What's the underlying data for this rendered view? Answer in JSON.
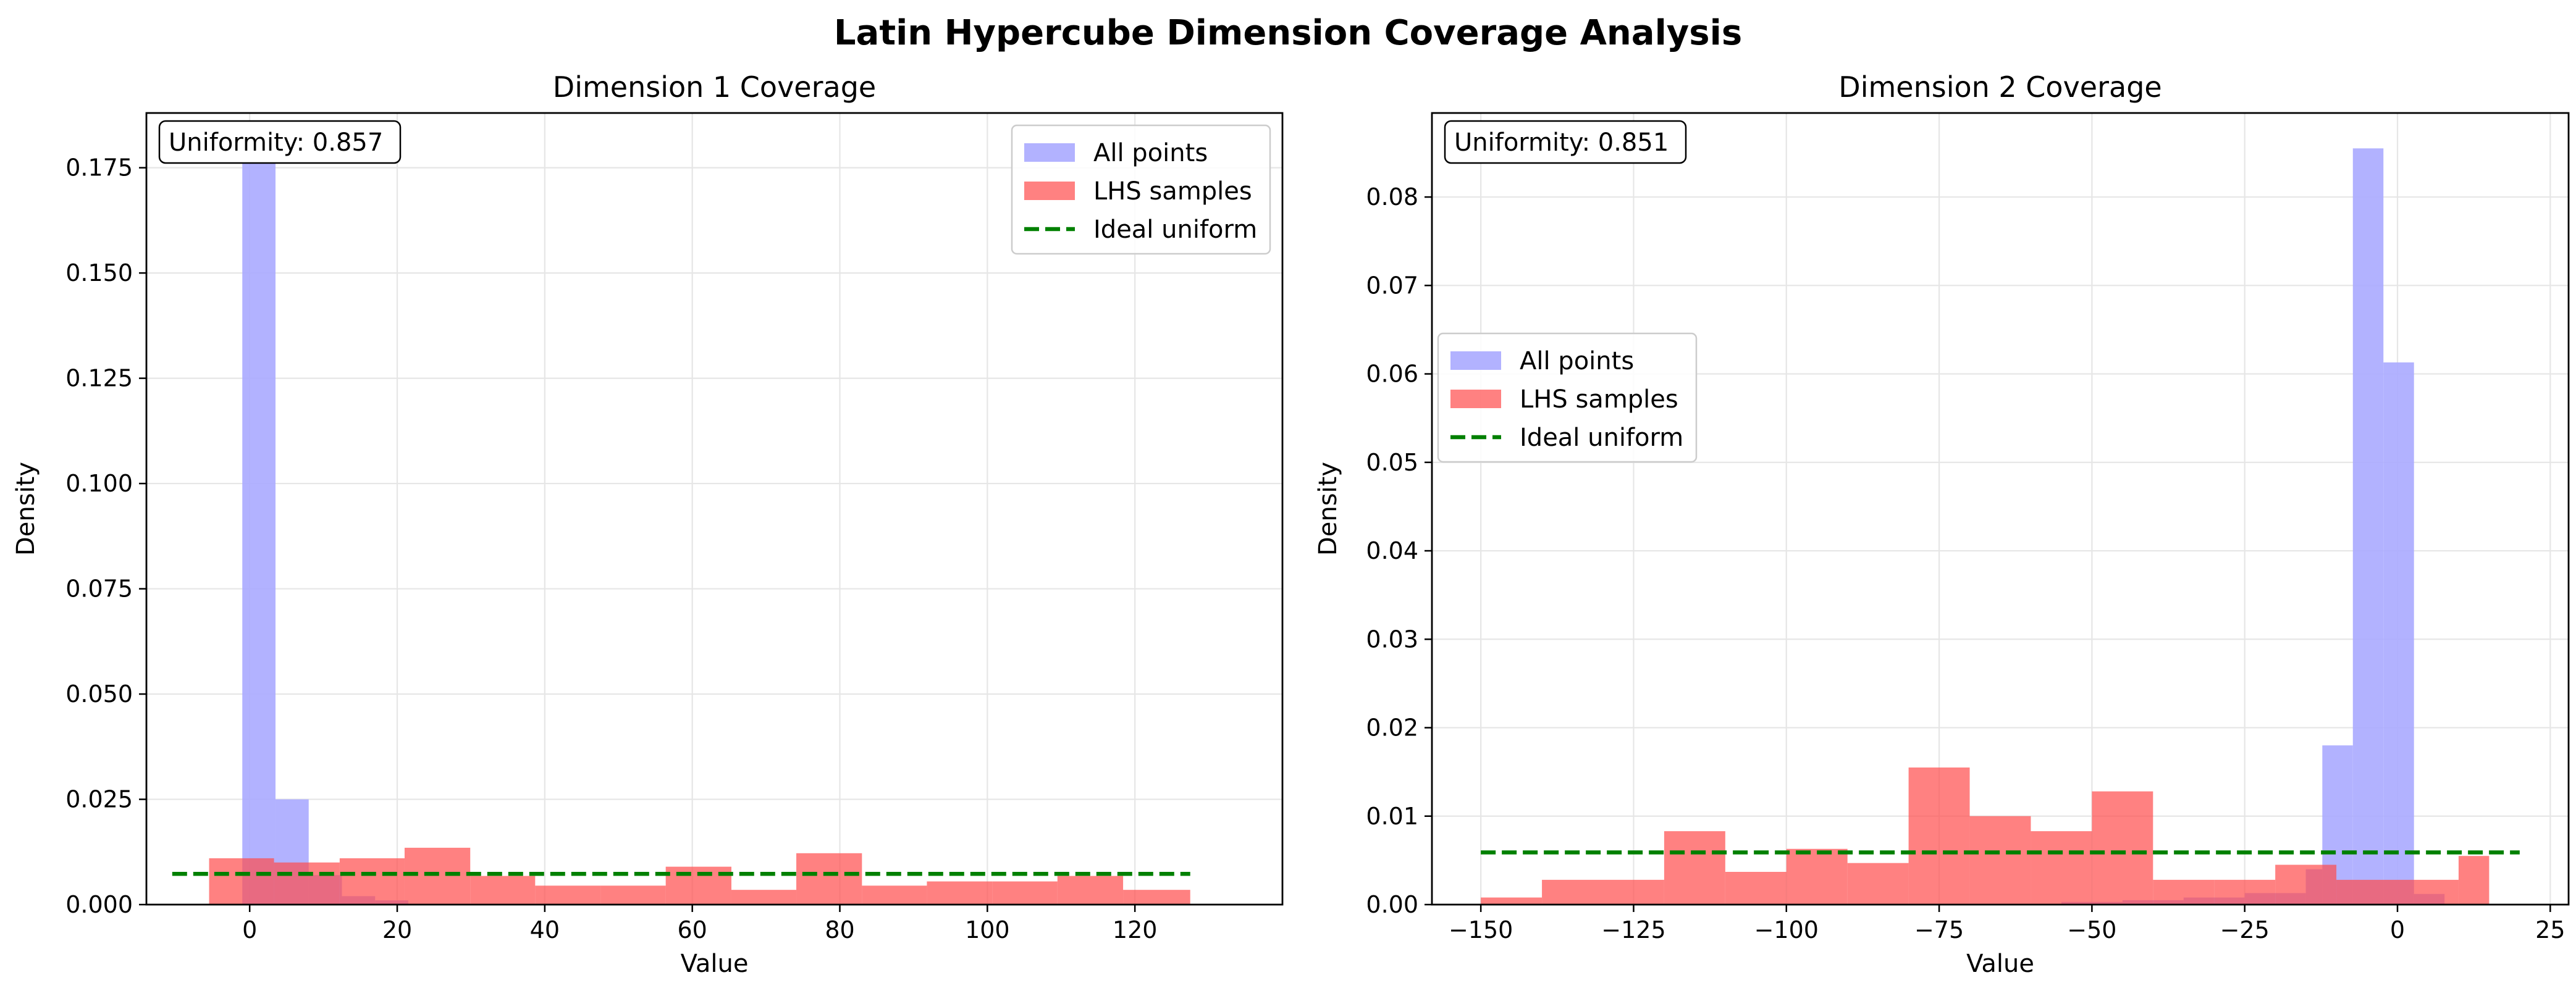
{
  "title": "Latin Hypercube Dimension Coverage Analysis",
  "colors": {
    "all_points": "#aaaaff",
    "lhs_samples": "#ff4c4c",
    "ideal_uniform": "#008000",
    "grid": "#e6e6e6"
  },
  "legend": {
    "all_points": "All points",
    "lhs_samples": "LHS samples",
    "ideal_uniform": "Ideal uniform"
  },
  "chart_data": [
    {
      "type": "histogram",
      "title": "Dimension 1 Coverage",
      "xlabel": "Value",
      "ylabel": "Density",
      "xlim": [
        -14,
        140
      ],
      "ylim": [
        0,
        0.188
      ],
      "xticks": [
        0,
        20,
        40,
        60,
        80,
        100,
        120
      ],
      "yticks": [
        0.0,
        0.025,
        0.05,
        0.075,
        0.1,
        0.125,
        0.15,
        0.175
      ],
      "ytick_labels": [
        "0.000",
        "0.025",
        "0.050",
        "0.075",
        "0.100",
        "0.125",
        "0.150",
        "0.175"
      ],
      "annotation": "Uniformity: 0.857",
      "legend_position": "upper right",
      "grid": true,
      "series": [
        {
          "name": "All points",
          "bins": [
            {
              "x0": -1.0,
              "x1": 3.5,
              "y": 0.18
            },
            {
              "x0": 3.5,
              "x1": 8.0,
              "y": 0.025
            },
            {
              "x0": 8.0,
              "x1": 12.5,
              "y": 0.007
            },
            {
              "x0": 12.5,
              "x1": 17.0,
              "y": 0.002
            },
            {
              "x0": 17.0,
              "x1": 21.5,
              "y": 0.001
            }
          ]
        },
        {
          "name": "LHS samples",
          "bins": [
            {
              "x0": -5.5,
              "x1": 3.3,
              "y": 0.011
            },
            {
              "x0": 3.3,
              "x1": 12.2,
              "y": 0.01
            },
            {
              "x0": 12.2,
              "x1": 21.0,
              "y": 0.011
            },
            {
              "x0": 21.0,
              "x1": 29.9,
              "y": 0.0135
            },
            {
              "x0": 29.9,
              "x1": 38.7,
              "y": 0.0068
            },
            {
              "x0": 38.7,
              "x1": 47.6,
              "y": 0.0045
            },
            {
              "x0": 47.6,
              "x1": 56.4,
              "y": 0.0045
            },
            {
              "x0": 56.4,
              "x1": 65.3,
              "y": 0.009
            },
            {
              "x0": 65.3,
              "x1": 74.1,
              "y": 0.0035
            },
            {
              "x0": 74.1,
              "x1": 83.0,
              "y": 0.0122
            },
            {
              "x0": 83.0,
              "x1": 91.8,
              "y": 0.0045
            },
            {
              "x0": 91.8,
              "x1": 100.7,
              "y": 0.0055
            },
            {
              "x0": 100.7,
              "x1": 109.5,
              "y": 0.0055
            },
            {
              "x0": 109.5,
              "x1": 118.4,
              "y": 0.0068
            },
            {
              "x0": 118.4,
              "x1": 127.5,
              "y": 0.0035
            }
          ]
        },
        {
          "name": "Ideal uniform",
          "type": "line",
          "x": [
            -10.5,
            127.5
          ],
          "y": [
            0.0073,
            0.0073
          ]
        }
      ]
    },
    {
      "type": "histogram",
      "title": "Dimension 2 Coverage",
      "xlabel": "Value",
      "ylabel": "Density",
      "xlim": [
        -158,
        28
      ],
      "ylim": [
        0,
        0.0895
      ],
      "xticks": [
        -150,
        -125,
        -100,
        -75,
        -50,
        -25,
        0,
        25
      ],
      "xtick_labels": [
        "−150",
        "−125",
        "−100",
        "−75",
        "−50",
        "−25",
        "0",
        "25"
      ],
      "yticks": [
        0.0,
        0.01,
        0.02,
        0.03,
        0.04,
        0.05,
        0.06,
        0.07,
        0.08
      ],
      "ytick_labels": [
        "0.00",
        "0.01",
        "0.02",
        "0.03",
        "0.04",
        "0.05",
        "0.06",
        "0.07",
        "0.08"
      ],
      "annotation": "Uniformity: 0.851",
      "legend_position": "center left",
      "grid": true,
      "series": [
        {
          "name": "All points",
          "bins": [
            {
              "x0": -55,
              "x1": -45,
              "y": 0.0003
            },
            {
              "x0": -45,
              "x1": -35,
              "y": 0.0005
            },
            {
              "x0": -35,
              "x1": -25,
              "y": 0.0008
            },
            {
              "x0": -25,
              "x1": -15,
              "y": 0.0013
            },
            {
              "x0": -15,
              "x1": -12.3,
              "y": 0.004
            },
            {
              "x0": -12.3,
              "x1": -7.3,
              "y": 0.018
            },
            {
              "x0": -7.3,
              "x1": -2.3,
              "y": 0.0855
            },
            {
              "x0": -2.3,
              "x1": 2.7,
              "y": 0.0613
            },
            {
              "x0": 2.7,
              "x1": 7.7,
              "y": 0.0012
            }
          ]
        },
        {
          "name": "LHS samples",
          "bins": [
            {
              "x0": -150,
              "x1": -140,
              "y": 0.0008
            },
            {
              "x0": -140,
              "x1": -130,
              "y": 0.0028
            },
            {
              "x0": -130,
              "x1": -120,
              "y": 0.0028
            },
            {
              "x0": -120,
              "x1": -110,
              "y": 0.0083
            },
            {
              "x0": -110,
              "x1": -100,
              "y": 0.0037
            },
            {
              "x0": -100,
              "x1": -90,
              "y": 0.0063
            },
            {
              "x0": -90,
              "x1": -80,
              "y": 0.0047
            },
            {
              "x0": -80,
              "x1": -70,
              "y": 0.0155
            },
            {
              "x0": -70,
              "x1": -60,
              "y": 0.01
            },
            {
              "x0": -60,
              "x1": -50,
              "y": 0.0083
            },
            {
              "x0": -50,
              "x1": -40,
              "y": 0.0128
            },
            {
              "x0": -40,
              "x1": -30,
              "y": 0.0028
            },
            {
              "x0": -30,
              "x1": -20,
              "y": 0.0028
            },
            {
              "x0": -20,
              "x1": -10,
              "y": 0.0045
            },
            {
              "x0": -10,
              "x1": 0,
              "y": 0.0028
            },
            {
              "x0": 0,
              "x1": 10,
              "y": 0.0028
            },
            {
              "x0": 10,
              "x1": 15,
              "y": 0.0055
            }
          ]
        },
        {
          "name": "Ideal uniform",
          "type": "line",
          "x": [
            -150,
            20
          ],
          "y": [
            0.0059,
            0.0059
          ]
        }
      ]
    }
  ]
}
